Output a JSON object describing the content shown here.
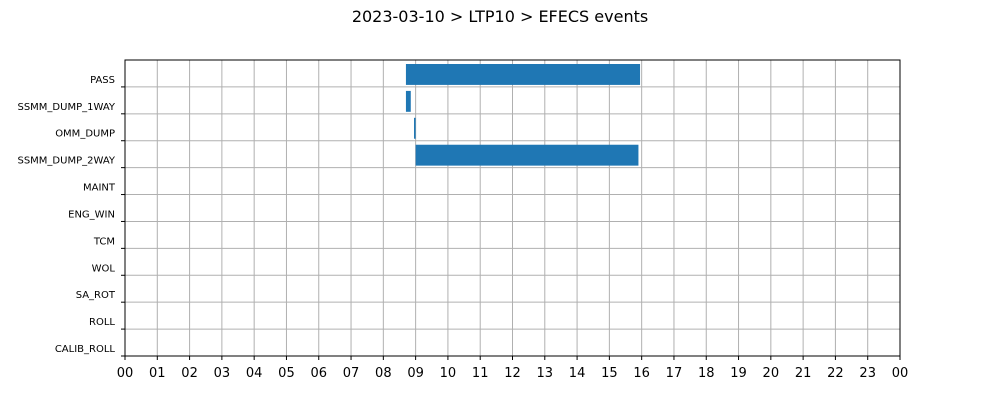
{
  "chart_data": {
    "type": "bar",
    "orientation": "horizontal",
    "title": "2023-03-10 > LTP10 > EFECS events",
    "xlabel": "",
    "ylabel": "",
    "xlim": [
      0,
      24
    ],
    "x_tick_labels": [
      "00",
      "01",
      "02",
      "03",
      "04",
      "05",
      "06",
      "07",
      "08",
      "09",
      "10",
      "11",
      "12",
      "13",
      "14",
      "15",
      "16",
      "17",
      "18",
      "19",
      "20",
      "21",
      "22",
      "23",
      "00"
    ],
    "categories": [
      "PASS",
      "SSMM_DUMP_1WAY",
      "OMM_DUMP",
      "SSMM_DUMP_2WAY",
      "MAINT",
      "ENG_WIN",
      "TCM",
      "WOL",
      "SA_ROT",
      "ROLL",
      "CALIB_ROLL"
    ],
    "grid": true,
    "bar_color": "#1f77b4",
    "events": [
      {
        "category": "PASS",
        "start": 8.7,
        "end": 15.95
      },
      {
        "category": "SSMM_DUMP_1WAY",
        "start": 8.7,
        "end": 8.85
      },
      {
        "category": "OMM_DUMP",
        "start": 8.95,
        "end": 9.0
      },
      {
        "category": "SSMM_DUMP_2WAY",
        "start": 9.0,
        "end": 15.9
      }
    ]
  }
}
